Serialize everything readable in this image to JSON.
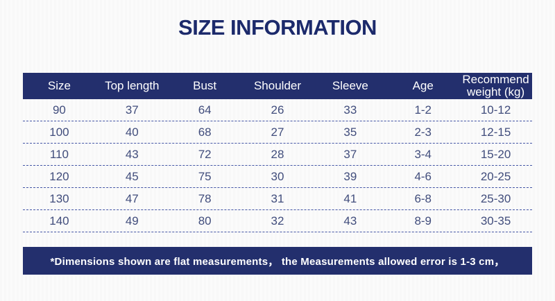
{
  "title": "SIZE INFORMATION",
  "colors": {
    "navy": "#232f6d",
    "title_text": "#1c2a6b",
    "cell_text": "#414d7c",
    "dash": "#4355a5",
    "header_text": "#ffffff",
    "background": "#fbfbfb"
  },
  "table": {
    "headers": [
      "Size",
      "Top length",
      "Bust",
      "Shoulder",
      "Sleeve",
      "Age",
      "Recommend\nweight (kg)"
    ],
    "rows": [
      [
        "90",
        "37",
        "64",
        "26",
        "33",
        "1-2",
        "10-12"
      ],
      [
        "100",
        "40",
        "68",
        "27",
        "35",
        "2-3",
        "12-15"
      ],
      [
        "110",
        "43",
        "72",
        "28",
        "37",
        "3-4",
        "15-20"
      ],
      [
        "120",
        "45",
        "75",
        "30",
        "39",
        "4-6",
        "20-25"
      ],
      [
        "130",
        "47",
        "78",
        "31",
        "41",
        "6-8",
        "25-30"
      ],
      [
        "140",
        "49",
        "80",
        "32",
        "43",
        "8-9",
        "30-35"
      ]
    ]
  },
  "footnote": "*Dimensions shown are flat measurements， the Measurements allowed error is 1-3 cm，"
}
